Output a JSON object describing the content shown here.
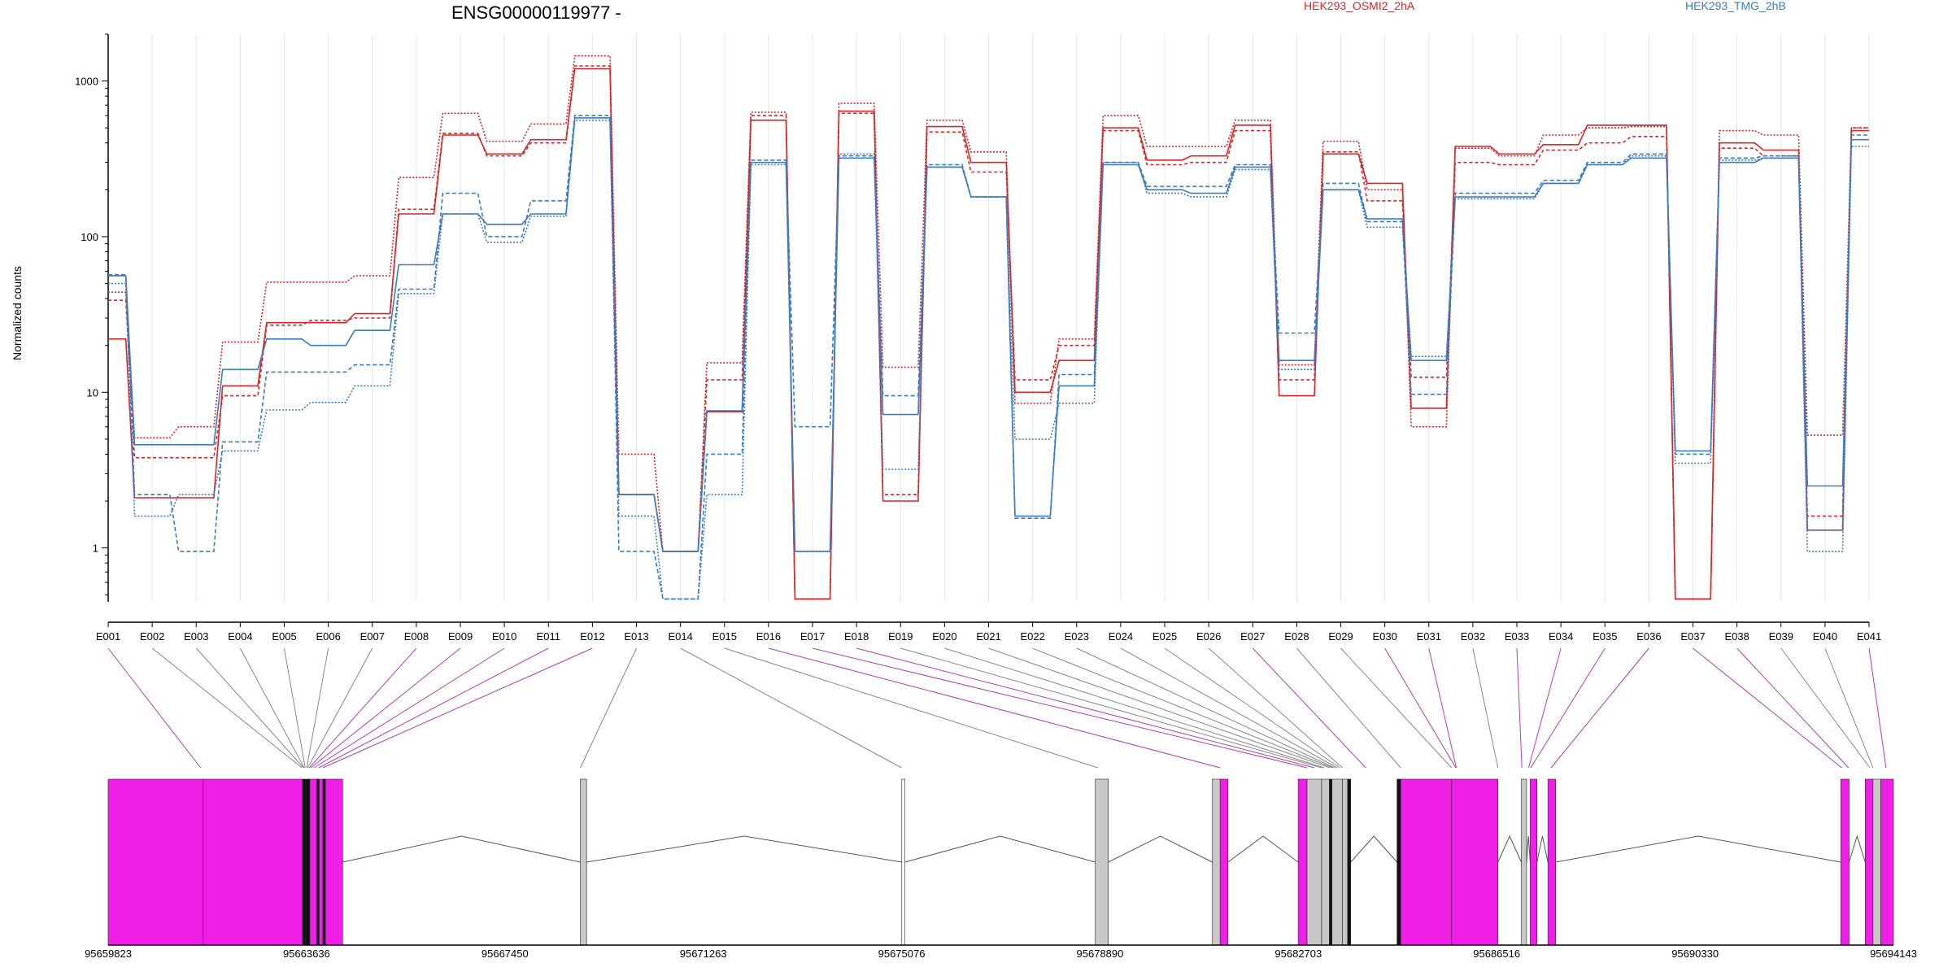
{
  "chart_data": {
    "type": "line",
    "title": "ENSG00000119977 -",
    "ylabel": "Normalized counts",
    "y_scale": "log",
    "ylim": [
      0.45,
      2000
    ],
    "y_ticks": [
      1,
      10,
      100,
      1000
    ],
    "y_tick_labels": [
      "1",
      "10",
      "100",
      "1000"
    ],
    "grid": true,
    "legend": [
      {
        "name": "HEK293_OSMI2_2hA",
        "color": "#d62728"
      },
      {
        "name": "HEK293_TMG_2hB",
        "color": "#3b7bbf"
      }
    ],
    "categories": [
      "E001",
      "E002",
      "E003",
      "E004",
      "E005",
      "E006",
      "E007",
      "E008",
      "E009",
      "E010",
      "E011",
      "E012",
      "E013",
      "E014",
      "E015",
      "E016",
      "E017",
      "E018",
      "E019",
      "E020",
      "E021",
      "E022",
      "E023",
      "E024",
      "E025",
      "E026",
      "E027",
      "E028",
      "E029",
      "E030",
      "E031",
      "E032",
      "E033",
      "E034",
      "E035",
      "E036",
      "E037",
      "E038",
      "E039",
      "E040",
      "E041"
    ],
    "series": [
      {
        "group": "HEK293_OSMI2_2hA",
        "color": "#d62728",
        "dash": "none",
        "values": [
          22,
          2.1,
          2.1,
          11,
          28,
          28,
          32,
          140,
          450,
          340,
          420,
          1200,
          2.2,
          0.95,
          7.5,
          560,
          0.47,
          640,
          2.0,
          510,
          300,
          10,
          16,
          500,
          310,
          330,
          520,
          9.5,
          340,
          220,
          7.9,
          380,
          340,
          390,
          520,
          520,
          0.47,
          400,
          360,
          1.3,
          480
        ]
      },
      {
        "group": "HEK293_OSMI2_2hA",
        "color": "#d62728",
        "dash": "4,3",
        "values": [
          39,
          3.8,
          3.8,
          9.5,
          27,
          29,
          30,
          150,
          460,
          330,
          400,
          1250,
          2.2,
          0.95,
          12,
          600,
          0.47,
          620,
          2.2,
          470,
          260,
          12,
          20,
          480,
          290,
          300,
          480,
          12,
          350,
          170,
          12.5,
          300,
          290,
          360,
          400,
          440,
          0.47,
          370,
          330,
          1.6,
          500
        ]
      },
      {
        "group": "HEK293_OSMI2_2hA",
        "color": "#d62728",
        "dash": "2,2",
        "values": [
          44,
          5.1,
          6.0,
          21,
          51,
          51,
          56,
          240,
          620,
          410,
          530,
          1450,
          4.0,
          0.95,
          15.5,
          630,
          0.47,
          720,
          14.5,
          560,
          350,
          8.5,
          22,
          600,
          380,
          380,
          560,
          15,
          410,
          200,
          6.0,
          370,
          330,
          450,
          500,
          510,
          0.47,
          480,
          450,
          5.3,
          500
        ]
      },
      {
        "group": "HEK293_TMG_2hB",
        "color": "#3b7bbf",
        "dash": "none",
        "values": [
          56,
          4.6,
          4.6,
          14,
          22,
          20,
          25,
          66,
          140,
          120,
          140,
          580,
          2.2,
          0.95,
          7.6,
          300,
          0.95,
          320,
          7.2,
          280,
          180,
          1.6,
          11,
          290,
          200,
          190,
          280,
          16,
          200,
          130,
          16,
          180,
          180,
          220,
          290,
          320,
          4.2,
          300,
          320,
          2.5,
          420
        ]
      },
      {
        "group": "HEK293_TMG_2hB",
        "color": "#3b7bbf",
        "dash": "5,3",
        "values": [
          57,
          2.2,
          0.95,
          4.8,
          13.5,
          13.5,
          15,
          46,
          190,
          100,
          170,
          600,
          0.95,
          0.47,
          4.0,
          310,
          6.0,
          330,
          9.5,
          290,
          180,
          1.55,
          13,
          300,
          210,
          210,
          290,
          24,
          220,
          125,
          9.7,
          190,
          190,
          230,
          300,
          340,
          4.0,
          320,
          330,
          1.3,
          450
        ]
      },
      {
        "group": "HEK293_TMG_2hB",
        "color": "#3b7bbf",
        "dash": "2,2",
        "values": [
          50,
          1.6,
          2.2,
          4.2,
          7.7,
          8.6,
          11,
          43,
          140,
          92,
          135,
          560,
          1.6,
          0.47,
          2.2,
          290,
          0.95,
          340,
          3.2,
          280,
          180,
          5.0,
          8.5,
          300,
          190,
          180,
          270,
          14,
          200,
          115,
          17,
          175,
          175,
          220,
          290,
          330,
          3.5,
          310,
          320,
          0.95,
          380
        ]
      }
    ]
  },
  "gene_model": {
    "coordinate_ticks": [
      "95659823",
      "95663636",
      "95667450",
      "95671263",
      "95675076",
      "95678890",
      "95682703",
      "95686516",
      "95690330",
      "95694143"
    ],
    "coordinate_tick_values": [
      95659823,
      95663636,
      95667450,
      95671263,
      95675076,
      95678890,
      95682703,
      95686516,
      95690330,
      95694143
    ],
    "exons": [
      {
        "start": 95659823,
        "end": 95661650,
        "color": "magenta"
      },
      {
        "start": 95661650,
        "end": 95663560,
        "color": "magenta"
      },
      {
        "start": 95663560,
        "end": 95663620,
        "color": "black"
      },
      {
        "start": 95663620,
        "end": 95663700,
        "color": "black"
      },
      {
        "start": 95663700,
        "end": 95663830,
        "color": "magenta"
      },
      {
        "start": 95663830,
        "end": 95663880,
        "color": "black"
      },
      {
        "start": 95663880,
        "end": 95663950,
        "color": "magenta"
      },
      {
        "start": 95663950,
        "end": 95664000,
        "color": "black"
      },
      {
        "start": 95664000,
        "end": 95664330,
        "color": "magenta"
      },
      {
        "start": 95668900,
        "end": 95669020,
        "color": "gray"
      },
      {
        "start": 95675080,
        "end": 95675140,
        "color": "white"
      },
      {
        "start": 95678800,
        "end": 95679050,
        "color": "gray"
      },
      {
        "start": 95681050,
        "end": 95681200,
        "color": "gray"
      },
      {
        "start": 95681200,
        "end": 95681350,
        "color": "magenta"
      },
      {
        "start": 95682700,
        "end": 95682870,
        "color": "magenta"
      },
      {
        "start": 95682870,
        "end": 95683150,
        "color": "gray"
      },
      {
        "start": 95683150,
        "end": 95683300,
        "color": "gray"
      },
      {
        "start": 95683300,
        "end": 95683350,
        "color": "black"
      },
      {
        "start": 95683350,
        "end": 95683550,
        "color": "gray"
      },
      {
        "start": 95683550,
        "end": 95683650,
        "color": "gray"
      },
      {
        "start": 95683650,
        "end": 95683710,
        "color": "black"
      },
      {
        "start": 95684600,
        "end": 95684670,
        "color": "black"
      },
      {
        "start": 95684670,
        "end": 95685650,
        "color": "magenta"
      },
      {
        "start": 95685650,
        "end": 95686540,
        "color": "magenta"
      },
      {
        "start": 95686990,
        "end": 95687090,
        "color": "gray"
      },
      {
        "start": 95687160,
        "end": 95687290,
        "color": "magenta"
      },
      {
        "start": 95687500,
        "end": 95687650,
        "color": "magenta"
      },
      {
        "start": 95693130,
        "end": 95693290,
        "color": "magenta"
      },
      {
        "start": 95693600,
        "end": 95693750,
        "color": "magenta"
      },
      {
        "start": 95693750,
        "end": 95693900,
        "color": "gray"
      },
      {
        "start": 95693900,
        "end": 95694143,
        "color": "magenta"
      }
    ],
    "introns": [
      [
        95664330,
        95668900
      ],
      [
        95669020,
        95675080
      ],
      [
        95675140,
        95678800
      ],
      [
        95679050,
        95681050
      ],
      [
        95681350,
        95682700
      ],
      [
        95683710,
        95684600
      ],
      [
        95686540,
        95686990
      ],
      [
        95687090,
        95687160
      ],
      [
        95687290,
        95687500
      ],
      [
        95687650,
        95693130
      ],
      [
        95693290,
        95693600
      ]
    ],
    "exon_link_targets": [
      95661600,
      95663550,
      95663580,
      95663590,
      95663610,
      95663640,
      95663660,
      95663690,
      95663720,
      95663780,
      95663870,
      95663950,
      95668900,
      95675075,
      95678850,
      95681200,
      95682870,
      95683010,
      95683150,
      95683200,
      95683310,
      95683360,
      95683400,
      95683450,
      95683500,
      95683550,
      95684000,
      95684670,
      95685650,
      95685730,
      95685740,
      95686540,
      95687000,
      95687130,
      95687170,
      95687560,
      95693150,
      95693280,
      95693690,
      95693750,
      95694000
    ],
    "exon_link_colors": [
      "magenta",
      "gray",
      "gray",
      "gray",
      "gray",
      "gray",
      "gray",
      "magenta",
      "magenta",
      "magenta",
      "magenta",
      "magenta",
      "gray",
      "gray",
      "gray",
      "magenta",
      "magenta",
      "magenta",
      "gray",
      "gray",
      "gray",
      "gray",
      "gray",
      "gray",
      "gray",
      "gray",
      "magenta",
      "gray",
      "gray",
      "magenta",
      "magenta",
      "gray",
      "magenta",
      "magenta",
      "magenta",
      "magenta",
      "magenta",
      "magenta",
      "gray",
      "gray",
      "magenta"
    ]
  },
  "colors": {
    "magenta": "#f01fe8",
    "gray": "#c8c8c8",
    "black": "#111111",
    "white": "#ffffff"
  }
}
